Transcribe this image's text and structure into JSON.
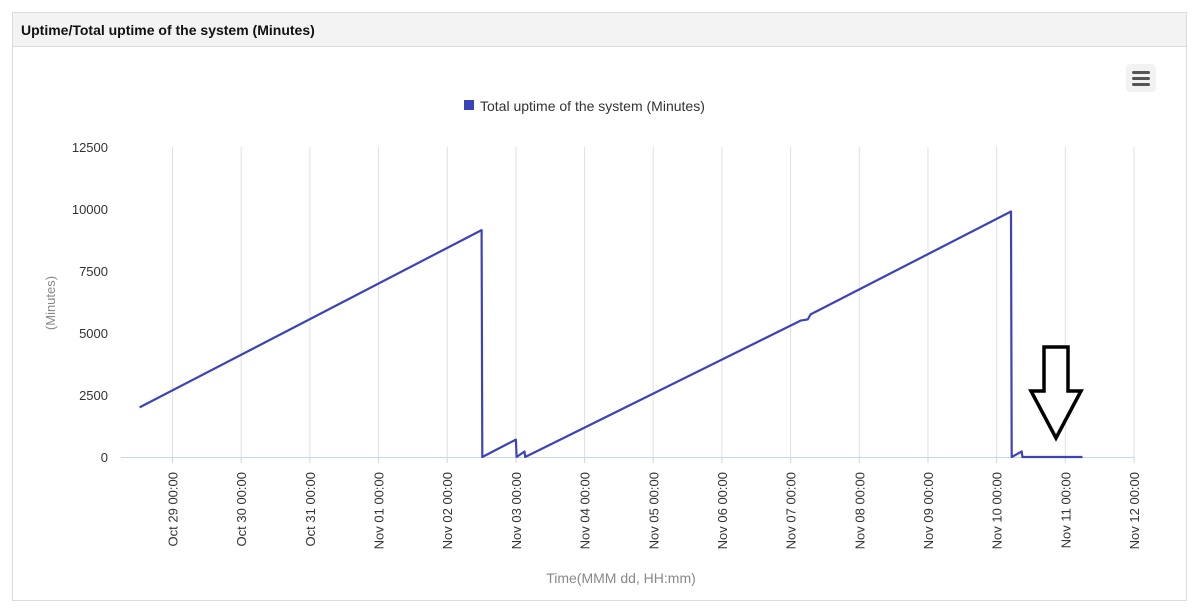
{
  "panel": {
    "title": "Uptime/Total uptime of the system (Minutes)"
  },
  "menu_icon": "hamburger-menu-icon",
  "colors": {
    "series": "#3c43b8",
    "grid": "#e0e0e0",
    "axis_text": "#333333",
    "axis_title": "#888888",
    "annotation": "#000000"
  },
  "chart_data": {
    "type": "line",
    "title": "",
    "xlabel": "Time(MMM dd, HH:mm)",
    "ylabel": "(Minutes)",
    "legend_position": "top-center",
    "grid": true,
    "ylim": [
      0,
      12500
    ],
    "y_ticks": [
      0,
      2500,
      5000,
      7500,
      10000,
      12500
    ],
    "xlim": [
      "2024-10-28 06:00",
      "2024-11-12 00:00"
    ],
    "x_ticks": [
      {
        "date": "2024-10-29 00:00",
        "label": "Oct 29 00:00"
      },
      {
        "date": "2024-10-30 00:00",
        "label": "Oct 30 00:00"
      },
      {
        "date": "2024-10-31 00:00",
        "label": "Oct 31 00:00"
      },
      {
        "date": "2024-11-01 00:00",
        "label": "Nov 01 00:00"
      },
      {
        "date": "2024-11-02 00:00",
        "label": "Nov 02 00:00"
      },
      {
        "date": "2024-11-03 00:00",
        "label": "Nov 03 00:00"
      },
      {
        "date": "2024-11-04 00:00",
        "label": "Nov 04 00:00"
      },
      {
        "date": "2024-11-05 00:00",
        "label": "Nov 05 00:00"
      },
      {
        "date": "2024-11-06 00:00",
        "label": "Nov 06 00:00"
      },
      {
        "date": "2024-11-07 00:00",
        "label": "Nov 07 00:00"
      },
      {
        "date": "2024-11-08 00:00",
        "label": "Nov 08 00:00"
      },
      {
        "date": "2024-11-09 00:00",
        "label": "Nov 09 00:00"
      },
      {
        "date": "2024-11-10 00:00",
        "label": "Nov 10 00:00"
      },
      {
        "date": "2024-11-11 00:00",
        "label": "Nov 11 00:00"
      },
      {
        "date": "2024-11-12 00:00",
        "label": "Nov 12 00:00"
      }
    ],
    "series": [
      {
        "name": "Total uptime of the system (Minutes)",
        "points": [
          {
            "x": "2024-10-28 12:30",
            "y": 2000
          },
          {
            "x": "2024-11-02 12:00",
            "y": 9150
          },
          {
            "x": "2024-11-02 12:15",
            "y": 0
          },
          {
            "x": "2024-11-03 00:00",
            "y": 700
          },
          {
            "x": "2024-11-03 00:15",
            "y": 0
          },
          {
            "x": "2024-11-03 03:00",
            "y": 220
          },
          {
            "x": "2024-11-03 03:15",
            "y": 0
          },
          {
            "x": "2024-11-07 03:30",
            "y": 5500
          },
          {
            "x": "2024-11-07 06:00",
            "y": 5550
          },
          {
            "x": "2024-11-07 07:00",
            "y": 5750
          },
          {
            "x": "2024-11-10 05:00",
            "y": 9900
          },
          {
            "x": "2024-11-10 05:15",
            "y": 0
          },
          {
            "x": "2024-11-10 08:45",
            "y": 220
          },
          {
            "x": "2024-11-10 09:00",
            "y": 0
          },
          {
            "x": "2024-11-11 06:00",
            "y": 0
          }
        ]
      }
    ]
  }
}
